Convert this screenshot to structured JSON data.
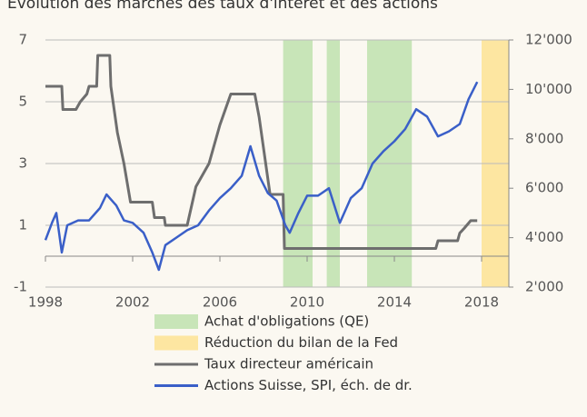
{
  "chart_data": {
    "type": "line",
    "title": "Evolution des marchés des taux d'intérêt et des actions",
    "xlim": [
      1998,
      2019.25
    ],
    "xticks": [
      1998,
      2002,
      2006,
      2010,
      2014,
      2018
    ],
    "ylim": [
      -1,
      7
    ],
    "yticks": [
      -1,
      1,
      3,
      5,
      7
    ],
    "y2lim": [
      2000,
      12000
    ],
    "y2ticks": [
      {
        "value": 2000,
        "label": "2'000"
      },
      {
        "value": 4000,
        "label": "4'000"
      },
      {
        "value": 6000,
        "label": "6'000"
      },
      {
        "value": 8000,
        "label": "8'000"
      },
      {
        "value": 10000,
        "label": "10'000"
      },
      {
        "value": 12000,
        "label": "12'000"
      }
    ],
    "grid": true,
    "bands": [
      {
        "name": "Achat d'obligations (QE)",
        "color": "#c8e5b8",
        "ranges": [
          [
            2008.9,
            2010.25
          ],
          [
            2010.9,
            2011.5
          ],
          [
            2012.75,
            2014.8
          ]
        ]
      },
      {
        "name": "Réduction du bilan de la Fed",
        "color": "#fde6a1",
        "ranges": [
          [
            2018,
            2019.25
          ]
        ]
      }
    ],
    "series": [
      {
        "name": "Taux directeur américain",
        "color": "#6e6e6e",
        "x": [
          1998,
          1998.75,
          1998.8,
          1999.4,
          1999.6,
          1999.9,
          2000.0,
          2000.35,
          2000.4,
          2000.95,
          2001.0,
          2001.3,
          2001.6,
          2001.9,
          2002.9,
          2003.0,
          2003.45,
          2003.5,
          2004.5,
          2004.9,
          2005.5,
          2006.0,
          2006.5,
          2007.6,
          2007.8,
          2008.0,
          2008.3,
          2008.9,
          2008.96,
          2015.9,
          2016.0,
          2016.9,
          2017.0,
          2017.2,
          2017.5,
          2017.8
        ],
        "values": [
          5.5,
          5.5,
          4.75,
          4.75,
          5.0,
          5.25,
          5.5,
          5.5,
          6.5,
          6.5,
          5.5,
          4.0,
          3.0,
          1.75,
          1.75,
          1.25,
          1.25,
          1.0,
          1.0,
          2.25,
          3.0,
          4.25,
          5.25,
          5.25,
          4.5,
          3.5,
          2.0,
          2.0,
          0.25,
          0.25,
          0.5,
          0.5,
          0.75,
          0.9,
          1.15,
          1.15
        ]
      },
      {
        "name": "Actions Suisse, SPI, éch. de dr.",
        "color": "#3a5fc8",
        "axis": "y2",
        "x": [
          1998.0,
          1998.3,
          1998.5,
          1998.75,
          1999.0,
          1999.5,
          2000.0,
          2000.5,
          2000.8,
          2001.25,
          2001.6,
          2002.0,
          2002.5,
          2002.9,
          2003.2,
          2003.5,
          2004.0,
          2004.5,
          2005.0,
          2005.5,
          2006.0,
          2006.5,
          2007.0,
          2007.4,
          2007.8,
          2008.2,
          2008.6,
          2009.0,
          2009.2,
          2009.6,
          2010.0,
          2010.5,
          2011.0,
          2011.5,
          2012.0,
          2012.5,
          2013.0,
          2013.5,
          2014.0,
          2014.5,
          2015.0,
          2015.5,
          2016.0,
          2016.5,
          2017.0,
          2017.4,
          2017.8
        ],
        "values": [
          3900,
          4600,
          5000,
          3400,
          4500,
          4700,
          4700,
          5200,
          5750,
          5300,
          4700,
          4600,
          4200,
          3400,
          2700,
          3700,
          4000,
          4300,
          4500,
          5100,
          5600,
          6000,
          6500,
          7700,
          6500,
          5800,
          5500,
          4500,
          4200,
          5000,
          5700,
          5700,
          6000,
          4600,
          5600,
          6000,
          7000,
          7500,
          7900,
          8400,
          9200,
          8900,
          8100,
          8300,
          8600,
          9600,
          10300
        ]
      }
    ]
  }
}
